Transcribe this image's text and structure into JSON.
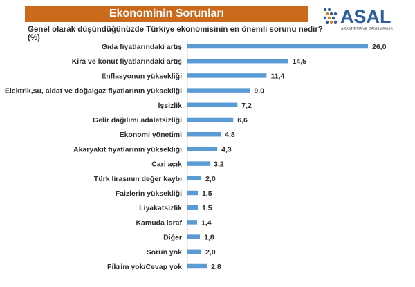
{
  "banner_title": "Ekonominin Sorunları",
  "logo": {
    "name": "ASAL",
    "tagline": "ARAŞTIRMA VE DANIŞMANLIK",
    "colors": [
      "#2f5f9e",
      "#e0801f"
    ]
  },
  "question": "Genel olarak düşündüğünüzde  Türkiye ekonomisinin  en önemli sorunu nedir? (%)",
  "colors": {
    "banner": "#cc6a1c",
    "bar": "#5b9bd5",
    "text": "#2e2e2e"
  },
  "chart_data": {
    "type": "bar",
    "orientation": "horizontal",
    "title": "",
    "xlabel": "",
    "ylabel": "",
    "xlim": [
      0,
      26
    ],
    "grid": false,
    "categories": [
      "Gıda fiyatlarındaki artış",
      "Kira ve konut fiyatlarındaki artış",
      "Enflasyonun yüksekliği",
      "Elektrik,su, aidat ve doğalgaz fiyatlarının yüksekliği",
      "İşsizlik",
      "Gelir dağılımı adaletsizliği",
      "Ekonomi yönetimi",
      "Akaryakıt fiyatlarının yüksekliği",
      "Cari açık",
      "Türk lirasının değer kaybı",
      "Faizlerin yüksekliği",
      "Liyakatsizlik",
      "Kamuda israf",
      "Diğer",
      "Sorun yok",
      "Fikrim yok/Cevap yok"
    ],
    "values": [
      26.0,
      14.5,
      11.4,
      9.0,
      7.2,
      6.6,
      4.8,
      4.3,
      3.2,
      2.0,
      1.5,
      1.5,
      1.4,
      1.8,
      2.0,
      2.8
    ],
    "value_labels": [
      "26,0",
      "14,5",
      "11,4",
      "9,0",
      "7,2",
      "6,6",
      "4,8",
      "4,3",
      "3,2",
      "2,0",
      "1,5",
      "1,5",
      "1,4",
      "1,8",
      "2,0",
      "2,8"
    ]
  }
}
